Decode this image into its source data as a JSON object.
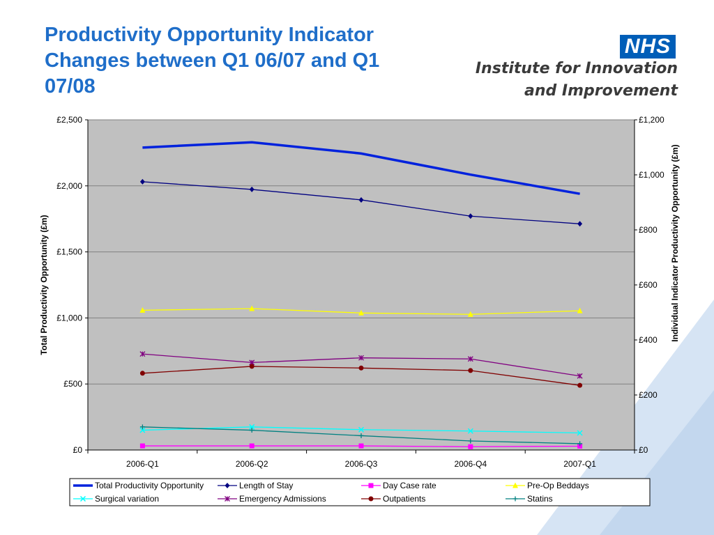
{
  "slide": {
    "title": "Productivity Opportunity Indicator Changes between Q1 06/07 and Q1 07/08"
  },
  "logo": {
    "nhs": "NHS",
    "line1": "Institute for Innovation",
    "line2": "and Improvement"
  },
  "colors": {
    "title": "#1f6ec9",
    "plot_background": "#c0c0c0",
    "deco_band": "#d6e4f4"
  },
  "chart_data": {
    "type": "line",
    "title": "",
    "categories": [
      "2006-Q1",
      "2006-Q2",
      "2006-Q3",
      "2006-Q4",
      "2007-Q1"
    ],
    "y_left": {
      "label": "Total Productivity Opportunity (£m)",
      "ticks": [
        "£0",
        "£500",
        "£1,000",
        "£1,500",
        "£2,000",
        "£2,500"
      ],
      "range": [
        0,
        2500
      ]
    },
    "y_right": {
      "label": "Individual Indicator Productivity Opportunity (£m)",
      "ticks": [
        "£0",
        "£200",
        "£400",
        "£600",
        "£800",
        "£1,000",
        "£1,200"
      ],
      "range": [
        0,
        1200
      ]
    },
    "grid": true,
    "legend_position": "bottom",
    "series": [
      {
        "name": "Total Productivity Opportunity",
        "axis": "left",
        "color": "#0022dd",
        "marker": "none",
        "values": [
          2290,
          2330,
          2245,
          2085,
          1940
        ]
      },
      {
        "name": "Length of Stay",
        "axis": "right",
        "color": "#000080",
        "marker": "diamond",
        "values": [
          975,
          947,
          909,
          850,
          822
        ]
      },
      {
        "name": "Day Case rate",
        "axis": "right",
        "color": "#ff00ff",
        "marker": "square",
        "values": [
          15,
          15,
          15,
          12,
          14
        ]
      },
      {
        "name": "Pre-Op Beddays",
        "axis": "right",
        "color": "#ffff00",
        "marker": "triangle",
        "values": [
          508,
          514,
          498,
          493,
          506
        ]
      },
      {
        "name": "Surgical variation",
        "axis": "right",
        "color": "#00ffff",
        "marker": "x",
        "values": [
          72,
          84,
          74,
          69,
          62
        ]
      },
      {
        "name": "Emergency Admissions",
        "axis": "right",
        "color": "#800080",
        "marker": "star",
        "values": [
          349,
          318,
          335,
          331,
          269
        ]
      },
      {
        "name": "Outpatients",
        "axis": "right",
        "color": "#800000",
        "marker": "circle",
        "values": [
          279,
          304,
          298,
          289,
          235
        ]
      },
      {
        "name": "Statins",
        "axis": "right",
        "color": "#008080",
        "marker": "plus",
        "values": [
          84,
          72,
          52,
          33,
          23
        ]
      }
    ]
  }
}
